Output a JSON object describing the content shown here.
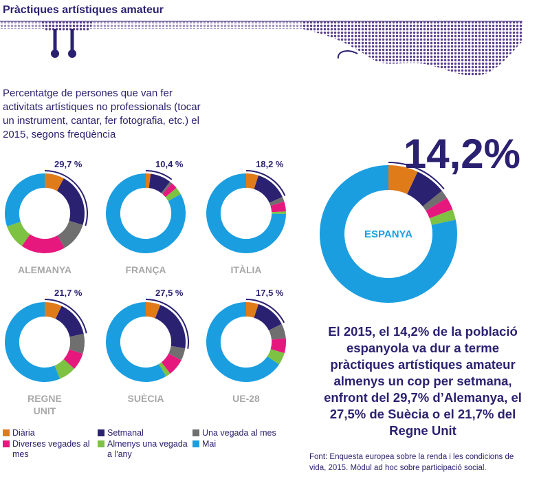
{
  "title": "Pràctiques artístiques amateur",
  "subtitle": "Percentatge de persones que van fer activitats artístiques no professionals (tocar un instrument, cantar, fer fotografia, etc.) el 2015, segons freqüència",
  "legend": {
    "categories": [
      "Diària",
      "Setmanal",
      "Una vegada al mes",
      "Diverses vegades al mes",
      "Almenys una vegada a l'any",
      "Mai"
    ],
    "colors": [
      "#e07b1a",
      "#2b2171",
      "#6f6f6f",
      "#e6177d",
      "#7dc242",
      "#1a9ee0"
    ]
  },
  "chart_data": [
    {
      "type": "donut",
      "title": "ALEMANYA",
      "values": [
        8,
        21.7,
        12,
        18,
        10,
        30.3
      ],
      "highlight": {
        "value": 29.7,
        "label": "29,7 %"
      }
    },
    {
      "type": "donut",
      "title": "FRANÇA",
      "values": [
        2,
        8.4,
        1,
        2.6,
        3,
        83
      ],
      "highlight": {
        "value": 10.4,
        "label": "10,4 %"
      }
    },
    {
      "type": "donut",
      "title": "ITÀLIA",
      "values": [
        5,
        13.2,
        2,
        4,
        1,
        74.6
      ],
      "highlight": {
        "value": 18.2,
        "label": "18,2 %"
      }
    },
    {
      "type": "donut",
      "title": "REGNE UNIT",
      "values": [
        7,
        14.7,
        8,
        7,
        7,
        56.3
      ],
      "highlight": {
        "value": 21.7,
        "label": "21,7 %"
      }
    },
    {
      "type": "donut",
      "title": "SUÈCIA",
      "values": [
        6,
        21.5,
        5,
        7,
        2,
        58.5
      ],
      "highlight": {
        "value": 27.5,
        "label": "27,5 %"
      }
    },
    {
      "type": "donut",
      "title": "UE-28",
      "values": [
        5,
        12.5,
        6,
        6,
        5,
        65.5
      ],
      "highlight": {
        "value": 17.5,
        "label": "17,5 %"
      }
    },
    {
      "type": "donut",
      "title": "ESPANYA",
      "values": [
        7,
        7.2,
        2,
        3,
        2.5,
        78.3
      ],
      "highlight": {
        "value": 14.2,
        "label": "14,2%"
      }
    }
  ],
  "summary": "El 2015, el 14,2% de la població espanyola va dur a terme pràctiques artístiques amateur almenys un cop per setmana, enfront del 29,7% d’Alemanya, el 27,5% de Suècia o el 21,7% del Regne Unit",
  "source": "Font: Enquesta europea sobre la renda i les condicions de vida, 2015. Mòdul ad hoc sobre participació social."
}
